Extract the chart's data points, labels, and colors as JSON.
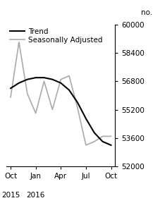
{
  "ylabel": "no.",
  "ylim": [
    52000,
    60000
  ],
  "yticks": [
    52000,
    53600,
    55200,
    56800,
    58400,
    60000
  ],
  "xtick_labels": [
    "Oct",
    "Jan",
    "Apr",
    "Jul",
    "Oct"
  ],
  "xtick_positions": [
    0,
    3,
    6,
    9,
    12
  ],
  "year_label_0": "2015",
  "year_label_1": "2016",
  "trend_x": [
    0,
    1,
    2,
    3,
    4,
    5,
    6,
    7,
    8,
    9,
    10,
    11,
    12
  ],
  "trend_y": [
    56400,
    56700,
    56900,
    57000,
    57000,
    56900,
    56700,
    56300,
    55600,
    54700,
    53900,
    53400,
    53200
  ],
  "seasonal_x": [
    0,
    1,
    2,
    3,
    4,
    5,
    6,
    7,
    8,
    9,
    10,
    11,
    12
  ],
  "seasonal_y": [
    55900,
    59000,
    56100,
    55000,
    56800,
    55200,
    56900,
    57100,
    55300,
    53200,
    53400,
    53700,
    53700
  ],
  "trend_color": "#000000",
  "seasonal_color": "#aaaaaa",
  "trend_linewidth": 1.5,
  "seasonal_linewidth": 1.2,
  "legend_trend": "Trend",
  "legend_seasonal": "Seasonally Adjusted",
  "background_color": "#ffffff",
  "font_size": 7.5
}
